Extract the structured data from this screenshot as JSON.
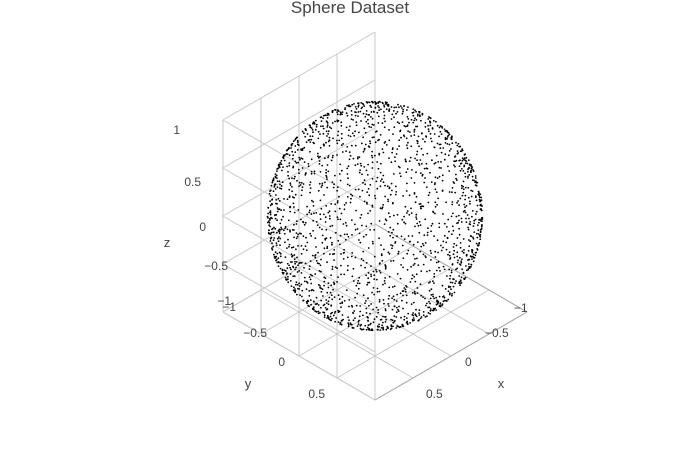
{
  "chart_data": {
    "type": "scatter",
    "projection": "3d",
    "title": "Sphere Dataset",
    "xlabel": "x",
    "ylabel": "y",
    "zlabel": "z",
    "xlim": [
      -1,
      1
    ],
    "ylim": [
      -1,
      1
    ],
    "zlim": [
      -1,
      1
    ],
    "x_ticks": [
      "−1",
      "−0.5",
      "0",
      "0.5"
    ],
    "y_ticks": [
      "−1",
      "−0.5",
      "0",
      "0.5"
    ],
    "z_ticks": [
      "−1",
      "−0.5",
      "0",
      "0.5",
      "1"
    ],
    "grid": true,
    "legend": "none",
    "series": [
      {
        "shape": "unit sphere surface",
        "radius": 1,
        "center": [
          0,
          0,
          0
        ],
        "approx_points": 2000
      }
    ],
    "marker_color": "#000000",
    "grid_color": "#c8c8c8"
  }
}
